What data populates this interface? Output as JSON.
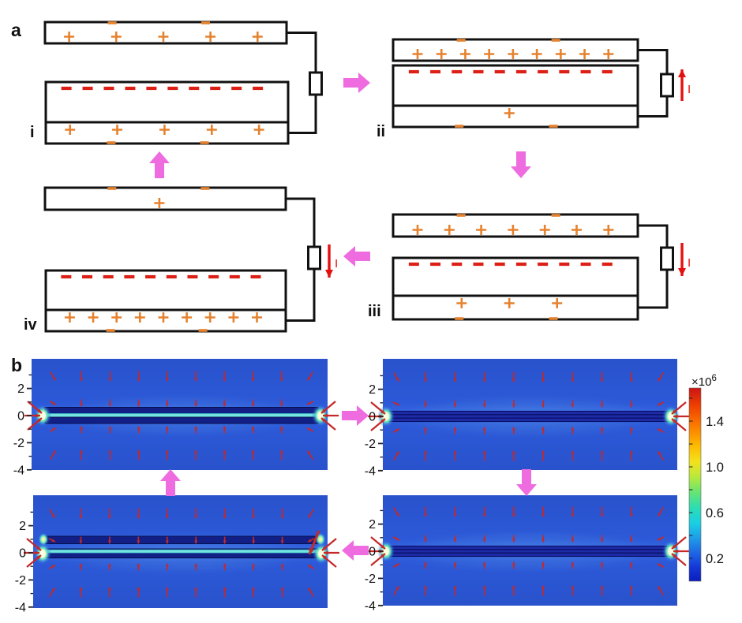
{
  "panel_a": {
    "label": "a",
    "current_symbol": "I",
    "states": [
      {
        "label": "i",
        "top_plate_plus": 5,
        "top_plate_minus": 2,
        "film_minus": 10,
        "bottom_plus": 5,
        "bottom_minus": 2,
        "current": "none",
        "gap": "medium"
      },
      {
        "label": "ii",
        "top_plate_plus": 9,
        "top_plate_minus": 2,
        "film_minus": 10,
        "bottom_plus": 1,
        "bottom_minus": 2,
        "current": "up",
        "gap": "closed"
      },
      {
        "label": "iii",
        "top_plate_plus": 7,
        "top_plate_minus": 2,
        "film_minus": 10,
        "bottom_plus": 3,
        "bottom_minus": 2,
        "current": "down",
        "gap": "small"
      },
      {
        "label": "iv",
        "top_plate_plus": 1,
        "top_plate_minus": 2,
        "film_minus": 10,
        "bottom_plus": 9,
        "bottom_minus": 2,
        "current": "down",
        "gap": "large"
      }
    ],
    "cycle_arrow_directions": [
      "right",
      "down",
      "left",
      "up"
    ]
  },
  "panel_b": {
    "label": "b",
    "y_ticks": [
      "2",
      "0",
      "-2",
      "-4"
    ],
    "plots": [
      {
        "position": "top-left",
        "plate_state": "separated-small-gap"
      },
      {
        "position": "top-right",
        "plate_state": "closed"
      },
      {
        "position": "bottom-right",
        "plate_state": "closed"
      },
      {
        "position": "bottom-left",
        "plate_state": "separated-large-gap"
      }
    ],
    "cycle_arrow_directions": [
      "right",
      "down",
      "left",
      "up"
    ],
    "colorbar": {
      "scale_base": "×10",
      "scale_exponent": "6",
      "tick_labels": [
        "1.4",
        "1.0",
        "0.6",
        "0.2"
      ]
    }
  },
  "colors": {
    "charge_orange": "#e5822e",
    "film_charge_red": "#dd2016",
    "cycle_arrow_pink": "#ee6ce0",
    "current_red": "#e41010",
    "outline_black": "#111111",
    "sim_background_blue": "#2b57d4",
    "sim_plate_navy": "#121f86",
    "sim_stripe_cyan": "#74e4e0",
    "sim_field_arrow_red": "#c62828",
    "sim_glow_green": "#d6f7a0"
  }
}
